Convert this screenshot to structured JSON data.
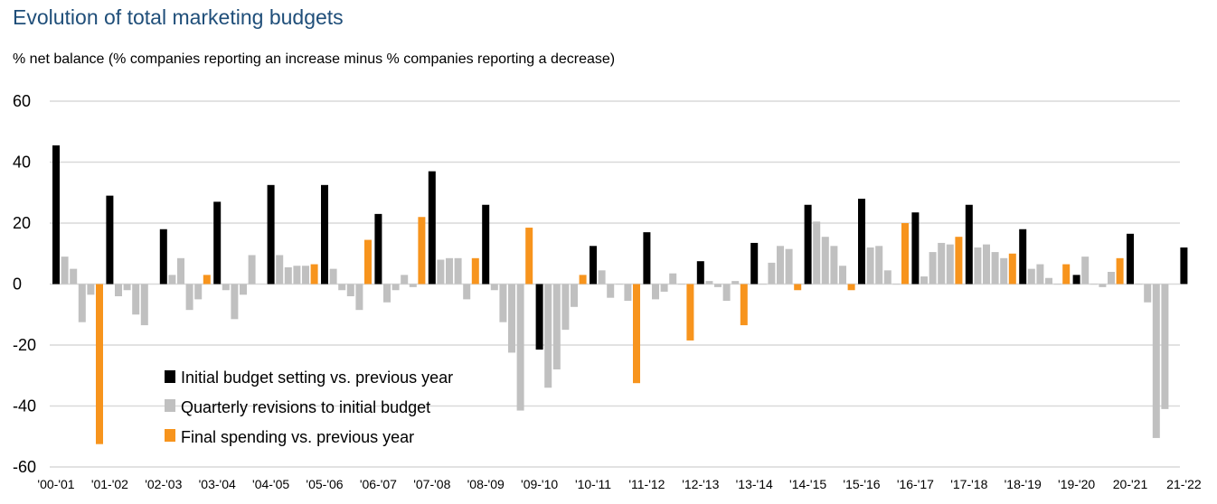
{
  "title": "Evolution of total marketing budgets",
  "subtitle": "% net balance (% companies reporting an increase minus % companies reporting a decrease)",
  "colors": {
    "initial": "#000000",
    "quarterly": "#c0c0c0",
    "final": "#f7941d",
    "title": "#1f4e79",
    "grid": "#d9d9d9"
  },
  "chart_data": {
    "type": "bar",
    "ylim": [
      -60,
      60
    ],
    "yticks": [
      "60",
      "40",
      "20",
      "0",
      "-20",
      "-40",
      "-60"
    ],
    "grid": true,
    "legend_position": "lower-left",
    "categories": [
      "'00-'01",
      "'01-'02",
      "'02-'03",
      "'03-'04",
      "'04-'05",
      "'05-'06",
      "'06-'07",
      "'07-'08",
      "'08-'09",
      "'09-'10",
      "'10-'11",
      "'11-'12",
      "'12-'13",
      "'13-'14",
      "'14-'15",
      "'15-'16",
      "'16-'17",
      "'17-'18",
      "'18-'19",
      "'19-'20",
      "20-'21",
      "21-'22"
    ],
    "series": [
      {
        "name": "Initial budget setting vs. previous year",
        "key": "initial"
      },
      {
        "name": "Quarterly revisions to initial budget",
        "key": "quarterly"
      },
      {
        "name": "Final spending vs. previous year",
        "key": "final"
      }
    ],
    "groups": [
      {
        "initial": 45.5,
        "quarterly": [
          9,
          5,
          -12.5,
          -3.5
        ],
        "final": -52.5
      },
      {
        "initial": 29,
        "quarterly": [
          -4,
          -2,
          -10,
          -13.5
        ],
        "final": null
      },
      {
        "initial": 18,
        "quarterly": [
          3,
          8.5,
          -8.5,
          -5
        ],
        "final": 3
      },
      {
        "initial": 27,
        "quarterly": [
          -2,
          -11.5,
          -3.5,
          9.5
        ],
        "final": null
      },
      {
        "initial": 32.5,
        "quarterly": [
          9.5,
          5.5,
          6,
          6
        ],
        "final": 6.5
      },
      {
        "initial": 32.5,
        "quarterly": [
          5,
          -2,
          -4,
          -8.5
        ],
        "final": 14.5
      },
      {
        "initial": 23,
        "quarterly": [
          -6,
          -2,
          3,
          -1
        ],
        "final": 22
      },
      {
        "initial": 37,
        "quarterly": [
          8,
          8.5,
          8.5,
          -5
        ],
        "final": 8.5
      },
      {
        "initial": 26,
        "quarterly": [
          -2,
          -12.5,
          -22.5,
          -41.5
        ],
        "final": 18.5
      },
      {
        "initial": -21.5,
        "quarterly": [
          -34,
          -28,
          -15,
          -7.5
        ],
        "final": 3
      },
      {
        "initial": 12.5,
        "quarterly": [
          4.5,
          -4.5,
          0,
          -5.5
        ],
        "final": -32.5
      },
      {
        "initial": 17,
        "quarterly": [
          -5,
          -2.5,
          3.5,
          0
        ],
        "final": -18.5
      },
      {
        "initial": 7.5,
        "quarterly": [
          1,
          -1,
          -5.5,
          1
        ],
        "final": -13.5
      },
      {
        "initial": 13.5,
        "quarterly": [
          0,
          7,
          12.5,
          11.5
        ],
        "final": -2
      },
      {
        "initial": 26,
        "quarterly": [
          20.5,
          15.5,
          12.5,
          6
        ],
        "final": -2
      },
      {
        "initial": 28,
        "quarterly": [
          12,
          12.5,
          4.5,
          0
        ],
        "final": 20
      },
      {
        "initial": 23.5,
        "quarterly": [
          2.5,
          10.5,
          13.5,
          13
        ],
        "final": 15.5
      },
      {
        "initial": 26,
        "quarterly": [
          12,
          13,
          10.5,
          8.5
        ],
        "final": 10
      },
      {
        "initial": 18,
        "quarterly": [
          5,
          6.5,
          2,
          0
        ],
        "final": 6.5
      },
      {
        "initial": 3,
        "quarterly": [
          9,
          0,
          -1,
          4
        ],
        "final": 8.5
      },
      {
        "initial": 16.5,
        "quarterly": [
          0,
          -6,
          -50.5,
          -41
        ],
        "final": null
      },
      {
        "initial": 12,
        "quarterly": [],
        "final": null
      }
    ]
  }
}
